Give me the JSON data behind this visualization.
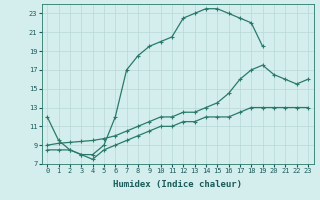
{
  "xlabel": "Humidex (Indice chaleur)",
  "bg_color": "#d4eeee",
  "grid_color": "#b8d8d8",
  "line_color": "#2a7a6a",
  "line1_x": [
    0,
    1,
    2,
    3,
    4,
    5,
    6,
    7,
    8,
    9,
    10,
    11,
    12,
    13,
    14,
    15,
    16,
    17,
    18,
    19
  ],
  "line1_y": [
    12.0,
    9.5,
    8.5,
    8.0,
    8.0,
    9.0,
    12.0,
    17.0,
    18.5,
    19.5,
    20.0,
    20.5,
    22.5,
    23.0,
    23.5,
    23.5,
    23.0,
    22.5,
    22.0,
    19.5
  ],
  "line2_x": [
    0,
    1,
    2,
    3,
    4,
    5,
    6,
    7,
    8,
    9,
    10,
    11,
    12,
    13,
    14,
    15,
    16,
    17,
    18,
    19,
    20,
    21,
    22,
    23
  ],
  "line2_y": [
    9.0,
    9.2,
    9.3,
    9.4,
    9.5,
    9.7,
    10.0,
    10.5,
    11.0,
    11.5,
    12.0,
    12.0,
    12.5,
    12.5,
    13.0,
    13.5,
    14.5,
    16.0,
    17.0,
    17.5,
    16.5,
    16.0,
    15.5,
    16.0
  ],
  "line3_x": [
    0,
    1,
    2,
    3,
    4,
    5,
    6,
    7,
    8,
    9,
    10,
    11,
    12,
    13,
    14,
    15,
    16,
    17,
    18,
    19,
    20,
    21,
    22,
    23
  ],
  "line3_y": [
    8.5,
    8.5,
    8.5,
    8.0,
    7.5,
    8.5,
    9.0,
    9.5,
    10.0,
    10.5,
    11.0,
    11.0,
    11.5,
    11.5,
    12.0,
    12.0,
    12.0,
    12.5,
    13.0,
    13.0,
    13.0,
    13.0,
    13.0,
    13.0
  ],
  "xlim": [
    0,
    23
  ],
  "ylim": [
    7,
    24
  ],
  "yticks": [
    7,
    9,
    11,
    13,
    15,
    17,
    19,
    21,
    23
  ],
  "xticks": [
    0,
    1,
    2,
    3,
    4,
    5,
    6,
    7,
    8,
    9,
    10,
    11,
    12,
    13,
    14,
    15,
    16,
    17,
    18,
    19,
    20,
    21,
    22,
    23
  ]
}
